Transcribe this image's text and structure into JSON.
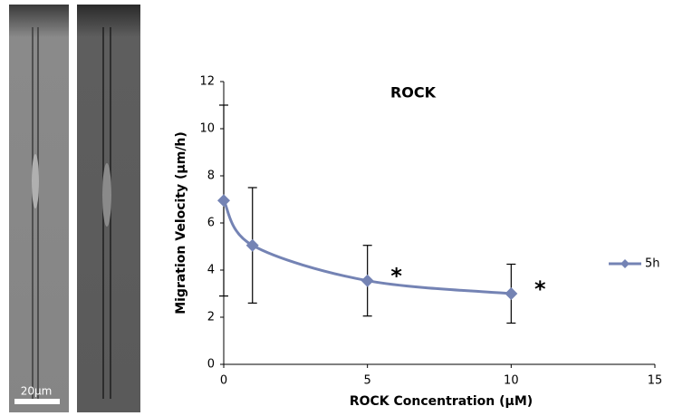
{
  "figure": {
    "scale_bar_label": "20μm"
  },
  "chart_data": {
    "type": "line",
    "title": "ROCK",
    "x_label": "ROCK Concentration (μM)",
    "y_label": "Migration Velocity (μm/h)",
    "x": [
      0,
      1,
      5,
      10
    ],
    "series": [
      {
        "name": "5h",
        "color": "#7483b4",
        "values": [
          6.95,
          5.05,
          3.55,
          3.0
        ],
        "errors": [
          4.05,
          2.45,
          1.5,
          1.25
        ]
      }
    ],
    "annotations": [
      "*",
      "*"
    ],
    "xlim": [
      0,
      15
    ],
    "xticks": [
      0,
      5,
      10,
      15
    ],
    "ylim": [
      0,
      12
    ],
    "yticks": [
      0,
      2,
      4,
      6,
      8,
      10,
      12
    ],
    "grid": false,
    "legend": "right",
    "smooth": true
  }
}
